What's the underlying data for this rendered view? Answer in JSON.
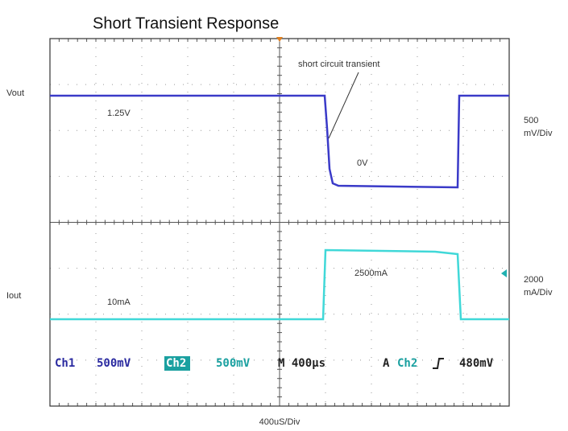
{
  "title": "Short Transient Response",
  "annotation": "short circuit transient",
  "channels": [
    {
      "label": "Vout",
      "high": "1.25V",
      "low": "0V",
      "scale": [
        "500",
        "mV/Div"
      ]
    },
    {
      "label": "Iout",
      "low": "10mA",
      "high": "2500mA",
      "scale": [
        "2000",
        "mA/Div"
      ]
    }
  ],
  "status": {
    "ch1": "Ch1",
    "ch1_scale": "500mV",
    "ch2": "Ch2",
    "ch2_scale": "500mV",
    "timebase": "M 400µs",
    "trigger_mode": "A",
    "trigger_source": "Ch2",
    "trigger_level": "480mV"
  },
  "x_label": "400uS/Div"
}
